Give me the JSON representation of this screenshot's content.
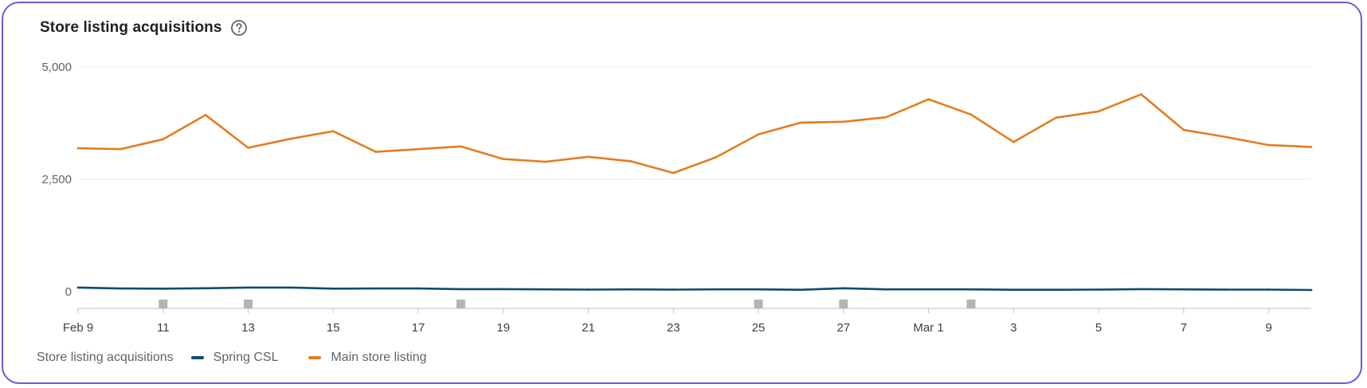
{
  "header": {
    "title": "Store listing acquisitions",
    "help_icon": "help-circle-icon"
  },
  "colors": {
    "main": "#e37d21",
    "spring": "#0f4c6e",
    "grid": "#e8eaed",
    "axis": "#bdc1c6",
    "marker": "#b4b4b4"
  },
  "legend": {
    "title": "Store listing acquisitions",
    "items": [
      "Spring CSL",
      "Main store listing"
    ]
  },
  "chart_data": {
    "type": "line",
    "x": [
      "Feb 9",
      "Feb 10",
      "Feb 11",
      "Feb 12",
      "Feb 13",
      "Feb 14",
      "Feb 15",
      "Feb 16",
      "Feb 17",
      "Feb 18",
      "Feb 19",
      "Feb 20",
      "Feb 21",
      "Feb 22",
      "Feb 23",
      "Feb 24",
      "Feb 25",
      "Feb 26",
      "Feb 27",
      "Feb 28",
      "Mar 1",
      "Mar 2",
      "Mar 3",
      "Mar 4",
      "Mar 5",
      "Mar 6",
      "Mar 7",
      "Mar 8",
      "Mar 9",
      "Mar 10"
    ],
    "x_tick_labels": [
      "Feb 9",
      "11",
      "13",
      "15",
      "17",
      "19",
      "21",
      "23",
      "25",
      "27",
      "Mar 1",
      "3",
      "5",
      "7",
      "9"
    ],
    "y_ticks": [
      0,
      2500,
      5000
    ],
    "y_tick_labels": [
      "0",
      "2,500",
      "5,000"
    ],
    "ylim": [
      0,
      5000
    ],
    "series": [
      {
        "name": "Spring CSL",
        "color": "#0f4c6e",
        "values": [
          90,
          70,
          65,
          75,
          90,
          90,
          65,
          70,
          70,
          55,
          55,
          50,
          45,
          50,
          45,
          50,
          50,
          40,
          75,
          50,
          50,
          50,
          40,
          40,
          45,
          55,
          50,
          45,
          45,
          35
        ]
      },
      {
        "name": "Main store listing",
        "color": "#e37d21",
        "values": [
          3190,
          3170,
          3390,
          3930,
          3200,
          3400,
          3570,
          3110,
          3170,
          3230,
          2950,
          2890,
          3000,
          2900,
          2640,
          2990,
          3500,
          3760,
          3780,
          3880,
          4280,
          3940,
          3330,
          3870,
          4010,
          4390,
          3600,
          3440,
          3260,
          3220
        ]
      }
    ],
    "annotation_markers_x": [
      "Feb 11",
      "Feb 13",
      "Feb 18",
      "Feb 25",
      "Feb 27",
      "Mar 2"
    ],
    "grid": true,
    "legend_position": "bottom-left"
  }
}
